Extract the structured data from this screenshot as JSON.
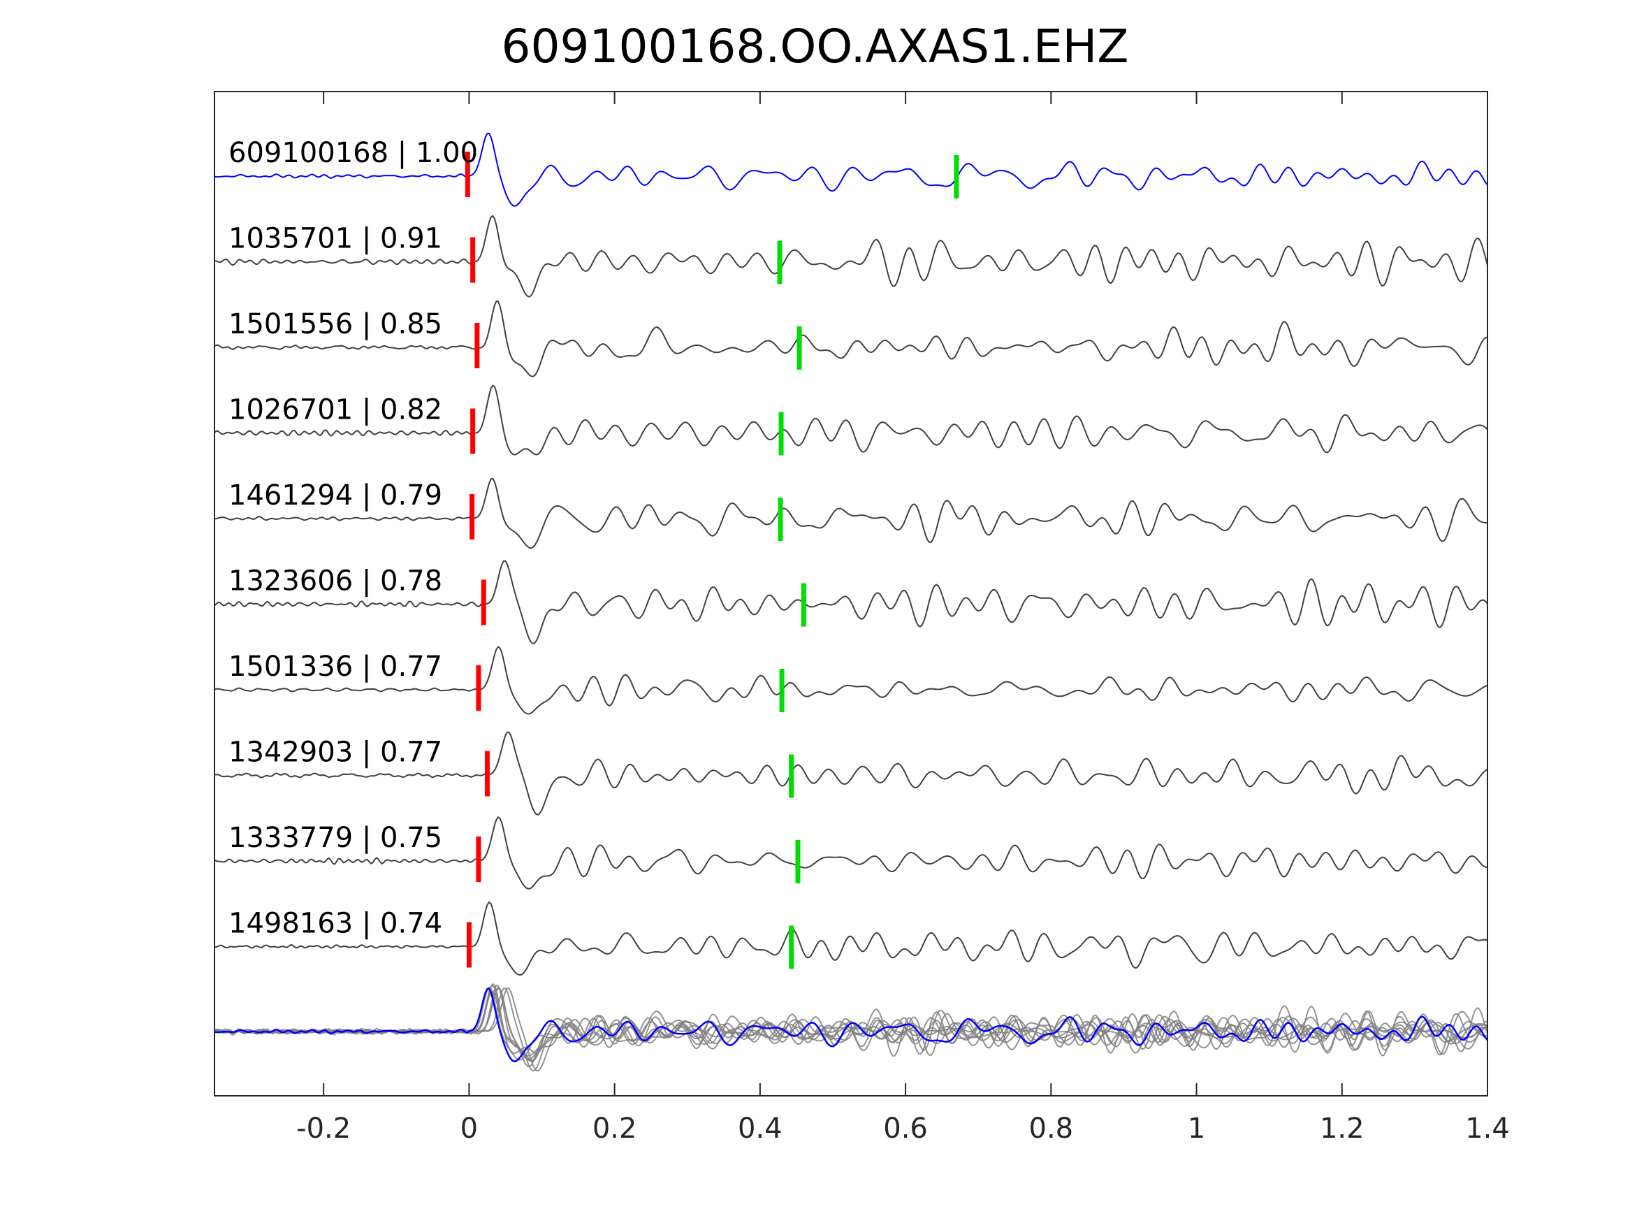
{
  "chart_data": {
    "type": "line",
    "title": "609100168.OO.AXAS1.EHZ",
    "xlabel": "",
    "ylabel": "",
    "xlim": [
      -0.35,
      1.4
    ],
    "x_ticks": [
      "-0.2",
      "0",
      "0.2",
      "0.4",
      "0.6",
      "0.8",
      "1",
      "1.2",
      "1.4"
    ],
    "x_tick_values": [
      -0.2,
      0,
      0.2,
      0.4,
      0.6,
      0.8,
      1.0,
      1.2,
      1.4
    ],
    "grid": false,
    "colors": {
      "reference_trace": "#0000ff",
      "matched_trace": "#404040",
      "stack_trace": "#808080",
      "p_pick": "#ff0000",
      "s_pick": "#00dd00"
    },
    "traces": [
      {
        "label": "609100168 | 1.00",
        "event_id": "609100168",
        "correlation": 1.0,
        "p_pick": -0.002,
        "s_pick": 0.67,
        "reference": true
      },
      {
        "label": "1035701 | 0.91",
        "event_id": "1035701",
        "correlation": 0.91,
        "p_pick": 0.005,
        "s_pick": 0.427,
        "reference": false
      },
      {
        "label": "1501556 | 0.85",
        "event_id": "1501556",
        "correlation": 0.85,
        "p_pick": 0.011,
        "s_pick": 0.454,
        "reference": false
      },
      {
        "label": "1026701 | 0.82",
        "event_id": "1026701",
        "correlation": 0.82,
        "p_pick": 0.005,
        "s_pick": 0.429,
        "reference": false
      },
      {
        "label": "1461294 | 0.79",
        "event_id": "1461294",
        "correlation": 0.79,
        "p_pick": 0.004,
        "s_pick": 0.428,
        "reference": false
      },
      {
        "label": "1323606 | 0.78",
        "event_id": "1323606",
        "correlation": 0.78,
        "p_pick": 0.02,
        "s_pick": 0.46,
        "reference": false
      },
      {
        "label": "1501336 | 0.77",
        "event_id": "1501336",
        "correlation": 0.77,
        "p_pick": 0.013,
        "s_pick": 0.43,
        "reference": false
      },
      {
        "label": "1342903 | 0.77",
        "event_id": "1342903",
        "correlation": 0.77,
        "p_pick": 0.025,
        "s_pick": 0.443,
        "reference": false
      },
      {
        "label": "1333779 | 0.75",
        "event_id": "1333779",
        "correlation": 0.75,
        "p_pick": 0.013,
        "s_pick": 0.452,
        "reference": false
      },
      {
        "label": "1498163 | 0.74",
        "event_id": "1498163",
        "correlation": 0.74,
        "p_pick": 0.0,
        "s_pick": 0.443,
        "reference": false
      }
    ],
    "stack": {
      "overlaid_traces": 10,
      "highlight": "reference"
    }
  }
}
